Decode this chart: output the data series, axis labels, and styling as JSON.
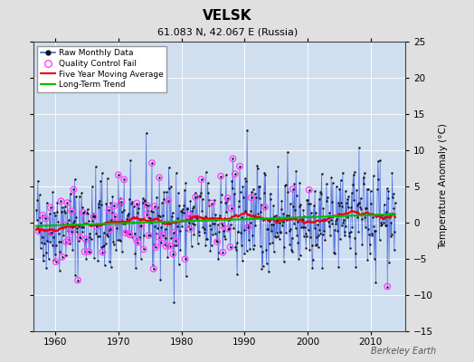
{
  "title": "VELSK",
  "subtitle": "61.083 N, 42.067 E (Russia)",
  "ylabel": "Temperature Anomaly (°C)",
  "credit": "Berkeley Earth",
  "xlim": [
    1956.5,
    2015.5
  ],
  "ylim": [
    -15,
    25
  ],
  "yticks": [
    -15,
    -10,
    -5,
    0,
    5,
    10,
    15,
    20,
    25
  ],
  "xticks": [
    1960,
    1970,
    1980,
    1990,
    2000,
    2010
  ],
  "bg_color": "#e0e0e0",
  "plot_bg_color": "#d0dff0",
  "raw_line_color": "#4466dd",
  "raw_dot_color": "#111111",
  "qc_fail_color": "#ff44ff",
  "moving_avg_color": "#ee0000",
  "trend_color": "#00bb00",
  "seed": 42,
  "n_months": 684,
  "start_year": 1957.0,
  "title_fontsize": 11,
  "subtitle_fontsize": 8,
  "ylabel_fontsize": 7.5,
  "tick_fontsize": 7.5,
  "legend_fontsize": 6.5,
  "credit_fontsize": 7
}
